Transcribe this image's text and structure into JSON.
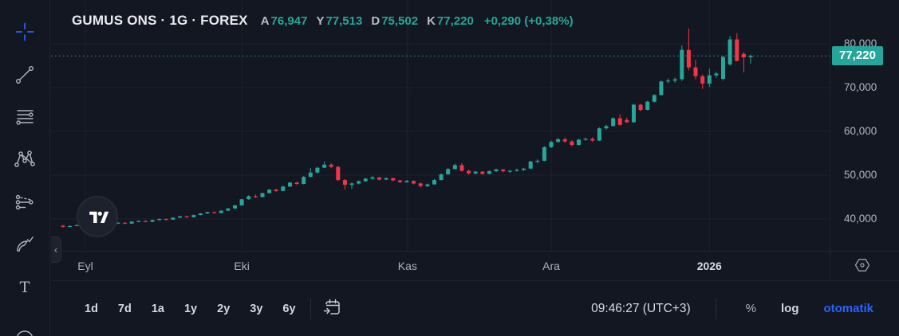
{
  "colors": {
    "background": "#131722",
    "up": "#26a69a",
    "down": "#f23645",
    "accent_blue": "#2962ff",
    "text_bright": "#d1d4dc",
    "text_dim": "#b2b5be",
    "grid_line": "#1d222e",
    "badge_bg": "#26a69a"
  },
  "header": {
    "symbol_title": "GUMUS ONS · 1G · FOREX",
    "ohlc": [
      {
        "label": "A",
        "value": "76,947"
      },
      {
        "label": "Y",
        "value": "77,513"
      },
      {
        "label": "D",
        "value": "75,502"
      },
      {
        "label": "K",
        "value": "77,220"
      }
    ],
    "change": "+0,290",
    "change_pct": "(+0,38%)"
  },
  "left_toolbar": {
    "tools": [
      "crosshair",
      "trend-line",
      "fib-retracement",
      "xabcd-pattern",
      "projection",
      "brush",
      "text",
      "arc"
    ]
  },
  "chart": {
    "price_axis": {
      "labels": [
        "80,000",
        "70,000",
        "60,000",
        "50,000",
        "40,000"
      ],
      "last_price_label": "77,220"
    },
    "time_axis": {
      "labels": [
        "Eyl",
        "Eki",
        "Kas",
        "Ara",
        "2026"
      ]
    }
  },
  "chart_data": {
    "type": "candlestick",
    "symbol": "GUMUS ONS",
    "interval": "1G",
    "exchange": "FOREX",
    "open": 76947,
    "high": 77513,
    "low": 75502,
    "close": 77220,
    "change": "+0,290 (+0,38%)",
    "last_price": 77220,
    "y_ticks": [
      80000,
      70000,
      60000,
      50000,
      40000
    ],
    "ylim": [
      33000,
      84500
    ],
    "x_axis_months": [
      "Eyl",
      "Eki",
      "Kas",
      "Ara",
      "2026"
    ],
    "month_start_indices": [
      3.25,
      26,
      50.1,
      71,
      94
    ],
    "grid": "on",
    "candles": [
      [
        38450,
        38600,
        38050,
        38200
      ],
      [
        38200,
        38500,
        38100,
        38400
      ],
      [
        38400,
        38650,
        38300,
        38600
      ],
      [
        38600,
        38700,
        38250,
        38350
      ],
      [
        38350,
        38800,
        38300,
        38700
      ],
      [
        38700,
        38950,
        38550,
        38850
      ],
      [
        38850,
        38900,
        38500,
        38600
      ],
      [
        38600,
        39100,
        38550,
        39000
      ],
      [
        39000,
        39250,
        38850,
        39150
      ],
      [
        39150,
        39250,
        38800,
        38950
      ],
      [
        38950,
        39500,
        38900,
        39400
      ],
      [
        39400,
        39650,
        39250,
        39550
      ],
      [
        39550,
        39650,
        39200,
        39350
      ],
      [
        39350,
        39850,
        39300,
        39750
      ],
      [
        39750,
        40100,
        39650,
        40000
      ],
      [
        40000,
        40150,
        39700,
        39850
      ],
      [
        39850,
        40400,
        39800,
        40300
      ],
      [
        40300,
        40700,
        40200,
        40600
      ],
      [
        40600,
        40750,
        40250,
        40400
      ],
      [
        40400,
        41000,
        40350,
        40900
      ],
      [
        40900,
        41350,
        40800,
        41250
      ],
      [
        41250,
        41650,
        41150,
        41550
      ],
      [
        41550,
        41700,
        41200,
        41350
      ],
      [
        41350,
        42000,
        41300,
        41900
      ],
      [
        41900,
        42500,
        41800,
        42400
      ],
      [
        42400,
        43200,
        42300,
        43100
      ],
      [
        43100,
        44600,
        43000,
        44500
      ],
      [
        44500,
        45400,
        44400,
        45200
      ],
      [
        45200,
        45600,
        44800,
        45000
      ],
      [
        45000,
        46000,
        44950,
        45900
      ],
      [
        45900,
        46800,
        45800,
        46700
      ],
      [
        46700,
        46900,
        46200,
        46400
      ],
      [
        46400,
        47600,
        46350,
        47400
      ],
      [
        47400,
        48400,
        47300,
        48300
      ],
      [
        48300,
        48500,
        47800,
        48000
      ],
      [
        48000,
        49800,
        47900,
        49600
      ],
      [
        49600,
        51600,
        49500,
        50600
      ],
      [
        50600,
        51900,
        50400,
        51700
      ],
      [
        51700,
        53100,
        51600,
        52400
      ],
      [
        52400,
        52700,
        51600,
        51900
      ],
      [
        51900,
        52100,
        48700,
        48900
      ],
      [
        48900,
        49100,
        46700,
        47800
      ],
      [
        47800,
        48300,
        46900,
        48100
      ],
      [
        48100,
        48800,
        47900,
        48600
      ],
      [
        48600,
        49400,
        48500,
        49200
      ],
      [
        49200,
        49800,
        49000,
        49500
      ],
      [
        49500,
        49600,
        48800,
        49000
      ],
      [
        49000,
        49500,
        48900,
        49300
      ],
      [
        49300,
        49400,
        48600,
        48800
      ],
      [
        48800,
        48900,
        48200,
        48400
      ],
      [
        48400,
        48900,
        48300,
        48700
      ],
      [
        48700,
        48800,
        47900,
        48100
      ],
      [
        48100,
        48300,
        47200,
        47500
      ],
      [
        47500,
        48100,
        47300,
        47900
      ],
      [
        47900,
        49100,
        47800,
        48900
      ],
      [
        48900,
        50400,
        48800,
        50200
      ],
      [
        50200,
        51600,
        50100,
        51400
      ],
      [
        51400,
        52600,
        51300,
        52300
      ],
      [
        52300,
        52800,
        50800,
        51000
      ],
      [
        51000,
        51200,
        50100,
        50400
      ],
      [
        50400,
        51000,
        50200,
        50800
      ],
      [
        50800,
        50900,
        50100,
        50300
      ],
      [
        50300,
        51100,
        50200,
        50900
      ],
      [
        50900,
        51500,
        50700,
        51300
      ],
      [
        51300,
        51400,
        50600,
        50900
      ],
      [
        50900,
        51200,
        50500,
        51000
      ],
      [
        51000,
        51500,
        50800,
        51200
      ],
      [
        51200,
        51700,
        51000,
        51500
      ],
      [
        51500,
        53300,
        51400,
        53100
      ],
      [
        53100,
        53600,
        52700,
        53300
      ],
      [
        53300,
        56600,
        53200,
        56400
      ],
      [
        56400,
        57900,
        56200,
        57600
      ],
      [
        57600,
        58500,
        57400,
        58200
      ],
      [
        58200,
        58600,
        57400,
        57700
      ],
      [
        57700,
        58000,
        56600,
        56900
      ],
      [
        56900,
        58300,
        56800,
        58100
      ],
      [
        58100,
        58600,
        57900,
        58300
      ],
      [
        58300,
        58700,
        57600,
        57900
      ],
      [
        57900,
        60900,
        57800,
        60700
      ],
      [
        60700,
        61500,
        60400,
        61200
      ],
      [
        61200,
        63200,
        61100,
        63000
      ],
      [
        63000,
        63900,
        61300,
        61500
      ],
      [
        62600,
        63100,
        61900,
        62100
      ],
      [
        62100,
        66300,
        62000,
        66100
      ],
      [
        66100,
        66300,
        64600,
        64900
      ],
      [
        64900,
        67000,
        64800,
        66800
      ],
      [
        66800,
        68500,
        66600,
        68300
      ],
      [
        68300,
        71600,
        68200,
        71400
      ],
      [
        71400,
        72100,
        71000,
        71600
      ],
      [
        71600,
        72300,
        71100,
        71900
      ],
      [
        71900,
        79600,
        71500,
        78600
      ],
      [
        78600,
        83500,
        73900,
        74600
      ],
      [
        74600,
        76300,
        71900,
        72600
      ],
      [
        72600,
        73000,
        69700,
        70900
      ],
      [
        70900,
        74300,
        70200,
        72800
      ],
      [
        72800,
        73600,
        72300,
        73200
      ],
      [
        72000,
        77200,
        71600,
        77000
      ],
      [
        75300,
        81800,
        75000,
        81000
      ],
      [
        81000,
        82400,
        76000,
        76100
      ],
      [
        77700,
        78100,
        73500,
        76930
      ],
      [
        76947,
        77513,
        75502,
        77220
      ]
    ]
  },
  "bottom_toolbar": {
    "ranges": [
      "1d",
      "7d",
      "1a",
      "1y",
      "2y",
      "3y",
      "6y"
    ],
    "clock": "09:46:27 (UTC+3)",
    "percent_label": "%",
    "log_label": "log",
    "auto_label": "otomatik"
  }
}
